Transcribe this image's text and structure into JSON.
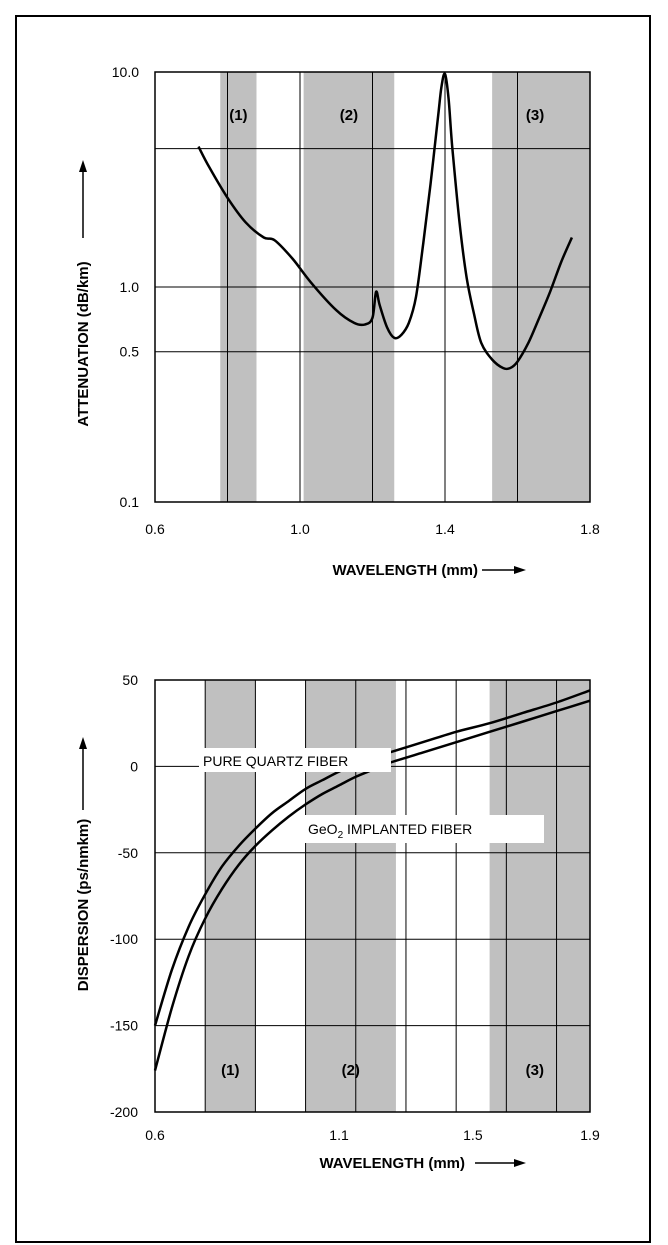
{
  "chart_data": [
    {
      "type": "line",
      "title": "",
      "xlabel": "WAVELENGTH (mm)",
      "ylabel": "ATTENUATION (dB/km)",
      "x_ticks": [
        "0.6",
        "1.0",
        "1.4",
        "1.8"
      ],
      "y_ticks": [
        "0.1",
        "0.5",
        "1.0",
        "10.0"
      ],
      "xlim": [
        0.6,
        1.8
      ],
      "ylim": [
        0.1,
        10.0
      ],
      "y_scale": "log",
      "grid": true,
      "bands": [
        {
          "label": "(1)",
          "x": [
            0.78,
            0.88
          ],
          "color": "#c0c0c0"
        },
        {
          "label": "(2)",
          "x": [
            1.01,
            1.26
          ],
          "color": "#c0c0c0"
        },
        {
          "label": "(3)",
          "x": [
            1.53,
            1.8
          ],
          "color": "#c0c0c0"
        }
      ],
      "series": [
        {
          "x": [
            0.72,
            0.75,
            0.8,
            0.85,
            0.9,
            0.93,
            0.98,
            1.03,
            1.1,
            1.15,
            1.18,
            1.2,
            1.21,
            1.22,
            1.24,
            1.26,
            1.28,
            1.3,
            1.32,
            1.34,
            1.36,
            1.38,
            1.39,
            1.4,
            1.41,
            1.42,
            1.44,
            1.46,
            1.48,
            1.5,
            1.53,
            1.56,
            1.58,
            1.6,
            1.63,
            1.66,
            1.69,
            1.72,
            1.75
          ],
          "values": [
            4.5,
            3.6,
            2.6,
            2.0,
            1.7,
            1.65,
            1.35,
            1.05,
            0.78,
            0.68,
            0.67,
            0.72,
            0.95,
            0.82,
            0.65,
            0.58,
            0.6,
            0.68,
            0.9,
            1.6,
            3.0,
            6.0,
            8.5,
            9.8,
            7.5,
            4.5,
            2.0,
            1.1,
            0.75,
            0.55,
            0.46,
            0.42,
            0.42,
            0.45,
            0.55,
            0.72,
            0.95,
            1.3,
            1.7
          ],
          "color": "#000000"
        }
      ]
    },
    {
      "type": "line",
      "title": "",
      "xlabel": "WAVELENGTH (mm)",
      "ylabel": "DISPERSION (ps/nmkm)",
      "x_ticks": [
        "0.6",
        "1.1",
        "1.5",
        "1.9"
      ],
      "y_ticks": [
        "50",
        "0",
        "-50",
        "-100",
        "-150",
        "-200"
      ],
      "xlim": [
        0.6,
        1.9
      ],
      "ylim": [
        -200,
        50
      ],
      "grid": true,
      "bands": [
        {
          "label": "(1)",
          "x": [
            0.75,
            0.9
          ],
          "color": "#c0c0c0"
        },
        {
          "label": "(2)",
          "x": [
            1.05,
            1.32
          ],
          "color": "#c0c0c0"
        },
        {
          "label": "(3)",
          "x": [
            1.6,
            1.9
          ],
          "color": "#c0c0c0"
        }
      ],
      "series": [
        {
          "name": "PURE QUARTZ FIBER",
          "x": [
            0.6,
            0.65,
            0.7,
            0.75,
            0.8,
            0.85,
            0.9,
            0.95,
            1.0,
            1.05,
            1.1,
            1.15,
            1.2,
            1.25,
            1.3,
            1.4,
            1.5,
            1.6,
            1.7,
            1.8,
            1.9
          ],
          "values": [
            -150,
            -118,
            -93,
            -74,
            -58,
            -46,
            -36,
            -27,
            -20,
            -13,
            -8,
            -3,
            1,
            5,
            8,
            14,
            20,
            25,
            31,
            37,
            44
          ],
          "color": "#000000"
        },
        {
          "name": "GeO2 IMPLANTED FIBER",
          "x": [
            0.6,
            0.65,
            0.7,
            0.75,
            0.8,
            0.85,
            0.9,
            0.95,
            1.0,
            1.05,
            1.1,
            1.15,
            1.2,
            1.25,
            1.3,
            1.4,
            1.5,
            1.6,
            1.7,
            1.8,
            1.9
          ],
          "values": [
            -176,
            -140,
            -110,
            -88,
            -71,
            -57,
            -46,
            -37,
            -29,
            -22,
            -16,
            -11,
            -6,
            -2,
            2,
            8,
            14,
            20,
            26,
            32,
            38
          ],
          "color": "#000000"
        }
      ],
      "annotations": [
        {
          "text": "PURE QUARTZ FIBER"
        },
        {
          "text": "GeO",
          "sub": "2",
          "text2": " IMPLANTED FIBER"
        }
      ]
    }
  ]
}
